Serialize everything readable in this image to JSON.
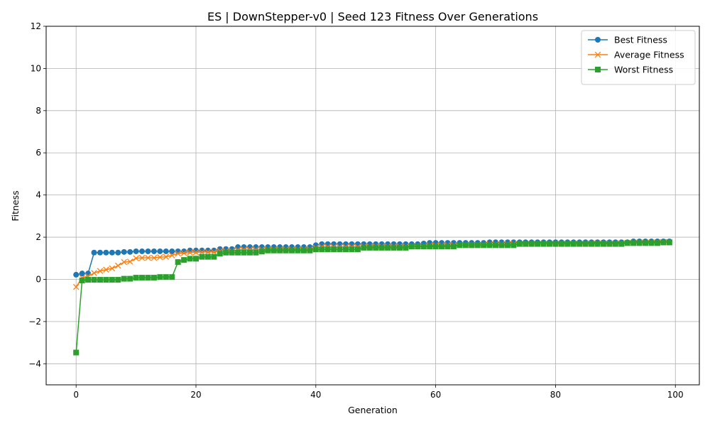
{
  "chart_data": {
    "type": "line",
    "title": "ES | DownStepper-v0 | Seed 123 Fitness Over Generations",
    "xlabel": "Generation",
    "ylabel": "Fitness",
    "xlim": [
      -5,
      104
    ],
    "ylim": [
      -5,
      12
    ],
    "xticks": [
      0,
      20,
      40,
      60,
      80,
      100
    ],
    "yticks": [
      -4,
      -2,
      0,
      2,
      4,
      6,
      8,
      10,
      12
    ],
    "grid": true,
    "legend_position": "top-right",
    "series": [
      {
        "name": "Best Fitness",
        "color": "#1f77b4",
        "marker": "circle",
        "values": [
          0.22,
          0.28,
          0.28,
          1.27,
          1.27,
          1.27,
          1.27,
          1.27,
          1.3,
          1.3,
          1.33,
          1.33,
          1.33,
          1.33,
          1.33,
          1.33,
          1.33,
          1.33,
          1.33,
          1.37,
          1.37,
          1.37,
          1.37,
          1.37,
          1.44,
          1.44,
          1.44,
          1.53,
          1.53,
          1.53,
          1.53,
          1.53,
          1.53,
          1.53,
          1.53,
          1.53,
          1.53,
          1.53,
          1.53,
          1.53,
          1.62,
          1.67,
          1.67,
          1.67,
          1.67,
          1.67,
          1.67,
          1.67,
          1.67,
          1.67,
          1.67,
          1.67,
          1.67,
          1.67,
          1.67,
          1.67,
          1.67,
          1.67,
          1.7,
          1.73,
          1.73,
          1.73,
          1.73,
          1.73,
          1.73,
          1.73,
          1.73,
          1.73,
          1.73,
          1.76,
          1.76,
          1.76,
          1.76,
          1.76,
          1.76,
          1.76,
          1.76,
          1.76,
          1.76,
          1.76,
          1.76,
          1.76,
          1.76,
          1.76,
          1.76,
          1.76,
          1.76,
          1.76,
          1.76,
          1.76,
          1.76,
          1.76,
          1.76,
          1.8,
          1.8,
          1.8,
          1.8,
          1.8,
          1.8,
          1.8
        ]
      },
      {
        "name": "Average Fitness",
        "color": "#ff7f0e",
        "marker": "x",
        "values": [
          -0.36,
          0.08,
          0.15,
          0.3,
          0.4,
          0.46,
          0.52,
          0.65,
          0.82,
          0.84,
          1.0,
          1.02,
          1.02,
          1.02,
          1.05,
          1.07,
          1.14,
          1.22,
          1.25,
          1.27,
          1.28,
          1.29,
          1.3,
          1.3,
          1.34,
          1.34,
          1.34,
          1.4,
          1.41,
          1.41,
          1.41,
          1.41,
          1.42,
          1.42,
          1.42,
          1.42,
          1.42,
          1.42,
          1.43,
          1.43,
          1.5,
          1.54,
          1.54,
          1.54,
          1.54,
          1.54,
          1.54,
          1.54,
          1.55,
          1.55,
          1.56,
          1.56,
          1.56,
          1.56,
          1.56,
          1.56,
          1.57,
          1.58,
          1.58,
          1.6,
          1.61,
          1.61,
          1.62,
          1.62,
          1.63,
          1.63,
          1.64,
          1.64,
          1.65,
          1.66,
          1.66,
          1.67,
          1.67,
          1.68,
          1.68,
          1.68,
          1.69,
          1.69,
          1.69,
          1.7,
          1.7,
          1.7,
          1.7,
          1.7,
          1.7,
          1.71,
          1.71,
          1.71,
          1.71,
          1.71,
          1.71,
          1.71,
          1.72,
          1.74,
          1.75,
          1.75,
          1.75,
          1.76,
          1.77,
          1.77
        ]
      },
      {
        "name": "Worst Fitness",
        "color": "#2ca02c",
        "marker": "square",
        "values": [
          -3.47,
          -0.05,
          -0.02,
          -0.02,
          -0.02,
          -0.02,
          -0.02,
          -0.02,
          0.03,
          0.03,
          0.08,
          0.08,
          0.08,
          0.08,
          0.11,
          0.11,
          0.11,
          0.82,
          0.92,
          0.98,
          0.98,
          1.07,
          1.07,
          1.07,
          1.22,
          1.27,
          1.27,
          1.27,
          1.27,
          1.27,
          1.27,
          1.32,
          1.37,
          1.37,
          1.37,
          1.37,
          1.37,
          1.37,
          1.37,
          1.37,
          1.42,
          1.42,
          1.42,
          1.42,
          1.42,
          1.42,
          1.42,
          1.42,
          1.5,
          1.5,
          1.5,
          1.5,
          1.5,
          1.5,
          1.5,
          1.5,
          1.56,
          1.56,
          1.56,
          1.56,
          1.56,
          1.56,
          1.56,
          1.56,
          1.62,
          1.62,
          1.62,
          1.62,
          1.62,
          1.62,
          1.62,
          1.62,
          1.62,
          1.62,
          1.68,
          1.68,
          1.68,
          1.68,
          1.68,
          1.68,
          1.68,
          1.68,
          1.68,
          1.68,
          1.68,
          1.68,
          1.68,
          1.68,
          1.68,
          1.68,
          1.68,
          1.68,
          1.72,
          1.72,
          1.72,
          1.72,
          1.72,
          1.72,
          1.75,
          1.75
        ]
      }
    ]
  }
}
